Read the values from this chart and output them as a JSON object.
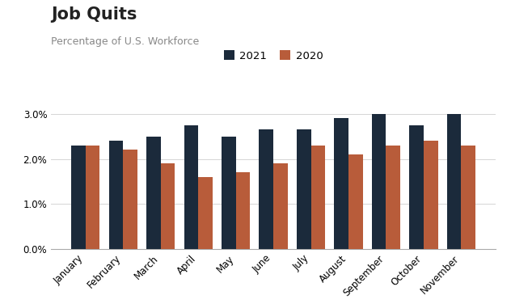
{
  "title": "Job Quits",
  "subtitle": "Percentage of U.S. Workforce",
  "categories": [
    "January",
    "February",
    "March",
    "April",
    "May",
    "June",
    "July",
    "August",
    "September",
    "October",
    "November"
  ],
  "values_2021": [
    2.3,
    2.4,
    2.5,
    2.75,
    2.5,
    2.65,
    2.65,
    2.9,
    3.0,
    2.75,
    3.0
  ],
  "values_2020": [
    2.3,
    2.2,
    1.9,
    1.6,
    1.7,
    1.9,
    2.3,
    2.1,
    2.3,
    2.4,
    2.3
  ],
  "color_2021": "#1b2a3b",
  "color_2020": "#b85c3a",
  "ylim": [
    0,
    3.5
  ],
  "yticks": [
    0.0,
    1.0,
    2.0,
    3.0
  ],
  "legend_labels": [
    "2021",
    "2020"
  ],
  "bar_width": 0.38,
  "background_color": "#ffffff",
  "title_fontsize": 15,
  "subtitle_fontsize": 9,
  "tick_fontsize": 8.5,
  "legend_fontsize": 9.5
}
